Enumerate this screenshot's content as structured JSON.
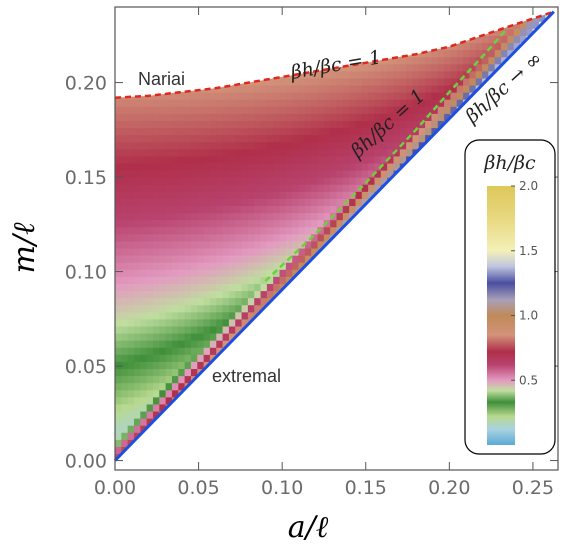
{
  "chart_data": {
    "type": "heatmap",
    "xlabel": "a/ℓ",
    "ylabel": "m/ℓ",
    "xlim": [
      0.0,
      0.265
    ],
    "ylim": [
      -0.005,
      0.24
    ],
    "xticks": [
      "0.00",
      "0.05",
      "0.10",
      "0.15",
      "0.20",
      "0.25"
    ],
    "xtick_values": [
      0.0,
      0.05,
      0.1,
      0.15,
      0.2,
      0.25
    ],
    "yticks": [
      "0.00",
      "0.05",
      "0.10",
      "0.15",
      "0.20"
    ],
    "ytick_values": [
      0.0,
      0.05,
      0.1,
      0.15,
      0.2
    ],
    "colorbar": {
      "title": "βh/βc",
      "ticks": [
        "0.5",
        "1.0",
        "1.5",
        "2.0"
      ],
      "tick_values": [
        0.5,
        1.0,
        1.5,
        2.0
      ],
      "range": [
        0.0,
        2.0
      ],
      "stops": [
        {
          "value": 0.0,
          "color": "#5aa9d6"
        },
        {
          "value": 0.12,
          "color": "#a9d2e0"
        },
        {
          "value": 0.22,
          "color": "#b8d98f"
        },
        {
          "value": 0.33,
          "color": "#3f8f3a"
        },
        {
          "value": 0.42,
          "color": "#c0dea0"
        },
        {
          "value": 0.5,
          "color": "#e39ac0"
        },
        {
          "value": 0.62,
          "color": "#b8436e"
        },
        {
          "value": 0.72,
          "color": "#b02f4a"
        },
        {
          "value": 0.85,
          "color": "#d2937a"
        },
        {
          "value": 1.0,
          "color": "#c08a58"
        },
        {
          "value": 1.12,
          "color": "#a8a0b8"
        },
        {
          "value": 1.25,
          "color": "#4a4ea0"
        },
        {
          "value": 1.38,
          "color": "#c0c6e0"
        },
        {
          "value": 1.5,
          "color": "#f3f0b8"
        },
        {
          "value": 1.75,
          "color": "#e8d880"
        },
        {
          "value": 2.0,
          "color": "#ddc85a"
        }
      ]
    },
    "curves": [
      {
        "name": "Nariai",
        "style": "red-dashed",
        "color": "#e0281e",
        "x": [
          0.0,
          0.02,
          0.04,
          0.06,
          0.08,
          0.1,
          0.12,
          0.14,
          0.16,
          0.18,
          0.2,
          0.22,
          0.24,
          0.2625
        ],
        "y": [
          0.192,
          0.193,
          0.195,
          0.197,
          0.2,
          0.203,
          0.206,
          0.209,
          0.212,
          0.215,
          0.219,
          0.225,
          0.231,
          0.2375
        ]
      },
      {
        "name": "extremal",
        "style": "blue-solid",
        "color": "#1e4fe0",
        "x": [
          0.0,
          0.2625
        ],
        "y": [
          0.0,
          0.2375
        ]
      },
      {
        "name": "βh/βc=1 (inner)",
        "style": "green-dashed",
        "color": "#6cd23a",
        "x": [
          0.09,
          0.12,
          0.15,
          0.18,
          0.2,
          0.22,
          0.235
        ],
        "y": [
          0.095,
          0.12,
          0.147,
          0.175,
          0.195,
          0.214,
          0.229
        ]
      }
    ],
    "annotations": [
      {
        "text": "Nariai",
        "kind": "plain"
      },
      {
        "text": "extremal",
        "kind": "plain"
      },
      {
        "text": "βh/βc = 1",
        "kind": "math"
      },
      {
        "text": "βh/βc = 1",
        "kind": "math"
      },
      {
        "text": "βh/βc → ∞",
        "kind": "math"
      }
    ]
  }
}
